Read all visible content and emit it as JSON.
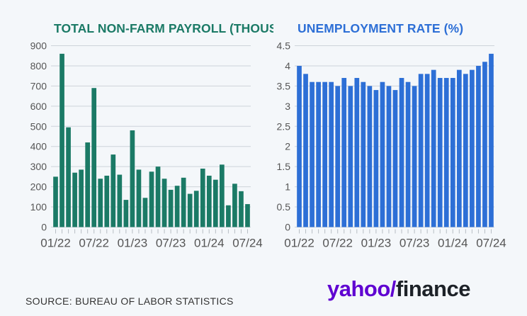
{
  "colors": {
    "payroll": "#1b7a66",
    "unemployment": "#2d6fd6",
    "logo_purple": "#5f01d1",
    "grid": "#cdd3d9"
  },
  "chart_data": [
    {
      "type": "bar",
      "title": "TOTAL NON-FARM PAYROLL (THOUSANDS)",
      "categories": [
        "01/22",
        "02/22",
        "03/22",
        "04/22",
        "05/22",
        "06/22",
        "07/22",
        "08/22",
        "09/22",
        "10/22",
        "11/22",
        "12/22",
        "01/23",
        "02/23",
        "03/23",
        "04/23",
        "05/23",
        "06/23",
        "07/23",
        "08/23",
        "09/23",
        "10/23",
        "11/23",
        "12/23",
        "01/24",
        "02/24",
        "03/24",
        "04/24",
        "05/24",
        "06/24",
        "07/24"
      ],
      "values": [
        250,
        860,
        495,
        270,
        285,
        420,
        690,
        240,
        255,
        360,
        260,
        135,
        480,
        285,
        145,
        275,
        300,
        240,
        185,
        205,
        245,
        165,
        180,
        290,
        255,
        235,
        310,
        108,
        215,
        178,
        114
      ],
      "tick_labels": [
        "01/22",
        "07/22",
        "01/23",
        "07/23",
        "01/24",
        "07/24"
      ],
      "yticks": [
        0,
        100,
        200,
        300,
        400,
        500,
        600,
        700,
        800,
        900
      ],
      "ylim": [
        0,
        900
      ],
      "grid": true
    },
    {
      "type": "bar",
      "title": "UNEMPLOYMENT RATE (%)",
      "categories": [
        "01/22",
        "02/22",
        "03/22",
        "04/22",
        "05/22",
        "06/22",
        "07/22",
        "08/22",
        "09/22",
        "10/22",
        "11/22",
        "12/22",
        "01/23",
        "02/23",
        "03/23",
        "04/23",
        "05/23",
        "06/23",
        "07/23",
        "08/23",
        "09/23",
        "10/23",
        "11/23",
        "12/23",
        "01/24",
        "02/24",
        "03/24",
        "04/24",
        "05/24",
        "06/24",
        "07/24"
      ],
      "values": [
        4.0,
        3.8,
        3.6,
        3.6,
        3.6,
        3.6,
        3.5,
        3.7,
        3.5,
        3.7,
        3.6,
        3.5,
        3.4,
        3.6,
        3.5,
        3.4,
        3.7,
        3.6,
        3.5,
        3.8,
        3.8,
        3.9,
        3.7,
        3.7,
        3.7,
        3.9,
        3.8,
        3.9,
        4.0,
        4.1,
        4.3
      ],
      "tick_labels": [
        "01/22",
        "07/22",
        "01/23",
        "07/23",
        "01/24",
        "07/24"
      ],
      "yticks": [
        "0",
        "0.5",
        "1",
        "1.5",
        "2",
        "2.5",
        "3",
        "3.5",
        "4",
        "4.5"
      ],
      "ylim": [
        0,
        4.5
      ],
      "grid": true
    }
  ],
  "footer": {
    "source": "SOURCE: BUREAU OF LABOR STATISTICS",
    "logo_yahoo": "yahoo",
    "logo_slash": "/",
    "logo_finance": "finance"
  }
}
